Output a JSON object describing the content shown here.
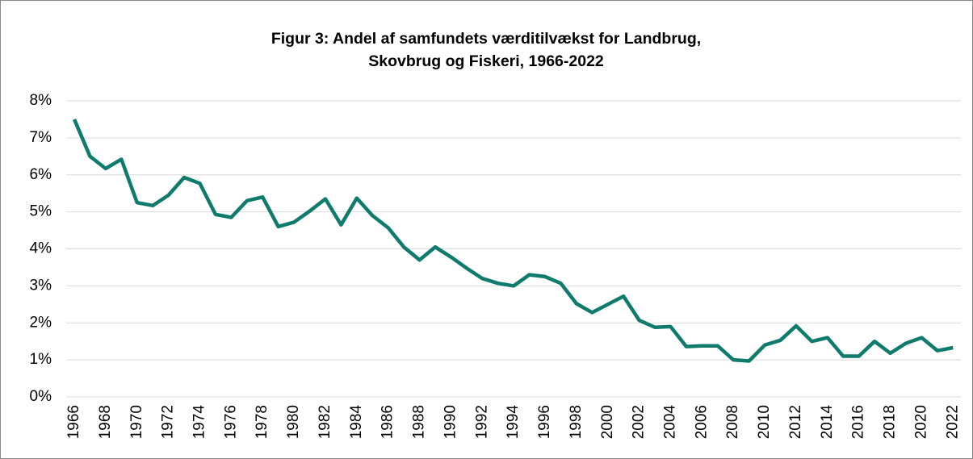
{
  "chart_data": {
    "type": "line",
    "title": "Figur 3: Andel af samfundets værditilvækst for Landbrug, Skovbrug og Fiskeri, 1966-2022",
    "categories": [
      "1966",
      null,
      "1968",
      null,
      "1970",
      null,
      "1972",
      null,
      "1974",
      null,
      "1976",
      null,
      "1978",
      null,
      "1980",
      null,
      "1982",
      null,
      "1984",
      null,
      "1986",
      null,
      "1988",
      null,
      "1990",
      null,
      "1992",
      null,
      "1994",
      null,
      "1996",
      null,
      "1998",
      null,
      "2000",
      null,
      "2002",
      null,
      "2004",
      null,
      "2006",
      null,
      "2008",
      null,
      "2010",
      null,
      "2012",
      null,
      "2014",
      null,
      "2016",
      null,
      "2018",
      null,
      "2020",
      null,
      "2022"
    ],
    "values": [
      7.5,
      6.5,
      6.17,
      6.42,
      5.25,
      5.17,
      5.45,
      5.93,
      5.77,
      4.93,
      4.85,
      5.3,
      5.4,
      4.6,
      4.72,
      5.02,
      5.35,
      4.65,
      5.37,
      4.9,
      4.57,
      4.05,
      3.7,
      4.05,
      3.78,
      3.48,
      3.2,
      3.07,
      3.0,
      3.3,
      3.25,
      3.07,
      2.52,
      2.28,
      2.5,
      2.72,
      2.07,
      1.88,
      1.9,
      1.36,
      1.38,
      1.38,
      1.0,
      0.97,
      1.4,
      1.53,
      1.92,
      1.5,
      1.6,
      1.1,
      1.1,
      1.5,
      1.18,
      1.45,
      1.6,
      1.25,
      1.33
    ],
    "color": "#0f7b6c",
    "ylim": [
      0,
      8
    ],
    "yticks": [
      {
        "value": 0,
        "label": "0%"
      },
      {
        "value": 1,
        "label": "1%"
      },
      {
        "value": 2,
        "label": "2%"
      },
      {
        "value": 3,
        "label": "3%"
      },
      {
        "value": 4,
        "label": "4%"
      },
      {
        "value": 5,
        "label": "5%"
      },
      {
        "value": 6,
        "label": "6%"
      },
      {
        "value": 7,
        "label": "7%"
      },
      {
        "value": 8,
        "label": "8%"
      }
    ],
    "grid": true
  }
}
